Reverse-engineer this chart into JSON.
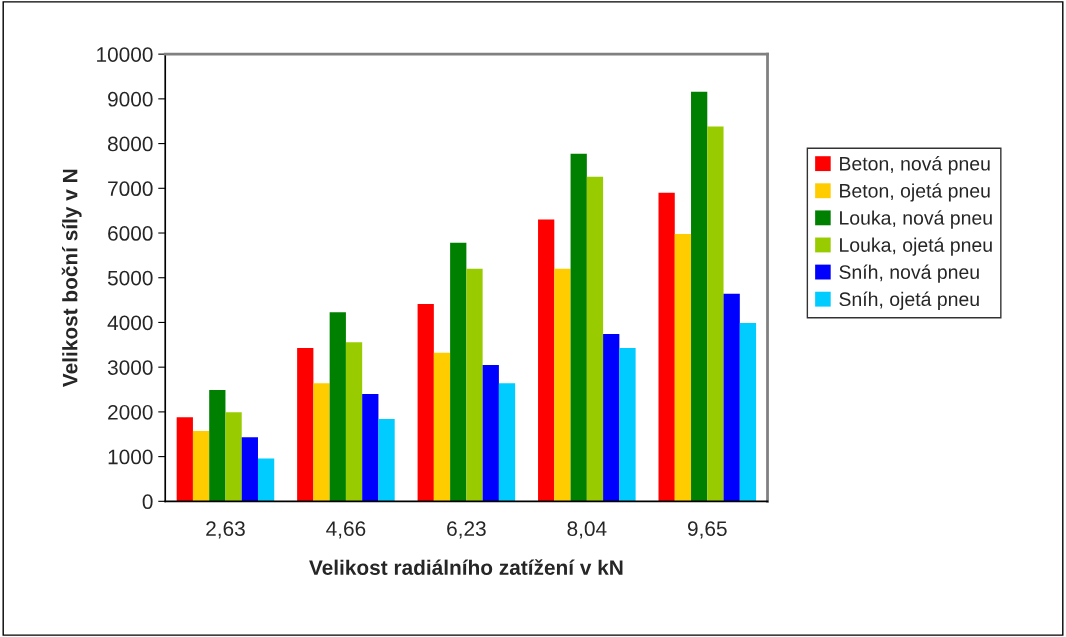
{
  "chart_data": {
    "type": "bar",
    "xlabel": "Velikost radiálního zatížení v kN",
    "ylabel": "Velikost boční síly v N",
    "categories": [
      "2,63",
      "4,66",
      "6,23",
      "8,04",
      "9,65"
    ],
    "series": [
      {
        "name": "Beton, nová pneu",
        "color": "#ff0000",
        "values": [
          1880,
          3430,
          4410,
          6300,
          6900
        ]
      },
      {
        "name": "Beton, ojetá pneu",
        "color": "#ffcc00",
        "values": [
          1570,
          2640,
          3320,
          5200,
          5980
        ]
      },
      {
        "name": "Louka, nová pneu",
        "color": "#008000",
        "values": [
          2490,
          4230,
          5780,
          7770,
          9160
        ]
      },
      {
        "name": "Louka, ojetá pneu",
        "color": "#99cc00",
        "values": [
          1990,
          3560,
          5200,
          7260,
          8380
        ]
      },
      {
        "name": "Sníh, nová pneu",
        "color": "#0000ff",
        "values": [
          1430,
          2400,
          3050,
          3740,
          4640
        ]
      },
      {
        "name": "Sníh, ojetá pneu",
        "color": "#00ccff",
        "values": [
          960,
          1840,
          2640,
          3430,
          3990
        ]
      }
    ],
    "ylim": [
      0,
      10000
    ],
    "yticks": [
      0,
      1000,
      2000,
      3000,
      4000,
      5000,
      6000,
      7000,
      8000,
      9000,
      10000
    ],
    "grid": false,
    "legend": "right"
  }
}
